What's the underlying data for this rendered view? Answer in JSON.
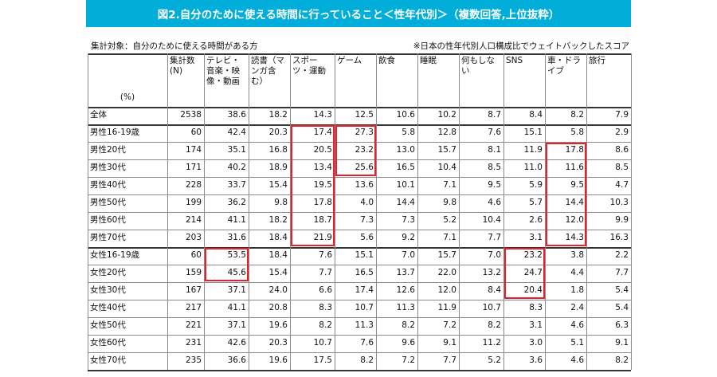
{
  "title": "図2.自分のために使える時間に行っていること＜性年代別＞（複数回答,上位抜粋）",
  "note_left": "集計対象：自分のために使える時間がある方",
  "note_right": "※日本の性年代別人口構成比でウェイトバックしたスコア",
  "chart_data": {
    "type": "table",
    "unit_label": "(%)",
    "columns": [
      "集計数(N)",
      "テレビ・音楽・映像・動画",
      "読書（マンガ含む）",
      "スポーツ・運動",
      "ゲーム",
      "飲食",
      "睡眠",
      "何もしない",
      "SNS",
      "車・ドライブ",
      "旅行"
    ],
    "rows": [
      {
        "label": "全体",
        "values": [
          2538,
          38.6,
          18.2,
          14.3,
          12.5,
          10.6,
          10.2,
          8.7,
          8.4,
          8.2,
          7.9
        ]
      },
      {
        "label": "男性16-19歳",
        "values": [
          60,
          42.4,
          20.3,
          17.4,
          27.3,
          5.8,
          12.8,
          7.6,
          15.1,
          5.8,
          2.9
        ]
      },
      {
        "label": "男性20代",
        "values": [
          174,
          35.1,
          16.8,
          20.5,
          23.2,
          13.0,
          15.7,
          8.1,
          11.9,
          17.8,
          8.6
        ]
      },
      {
        "label": "男性30代",
        "values": [
          171,
          40.2,
          18.9,
          13.4,
          25.6,
          16.5,
          10.4,
          8.5,
          11.0,
          11.6,
          8.5
        ]
      },
      {
        "label": "男性40代",
        "values": [
          228,
          33.7,
          15.4,
          19.5,
          13.6,
          10.1,
          7.1,
          9.5,
          5.9,
          9.5,
          4.7
        ]
      },
      {
        "label": "男性50代",
        "values": [
          199,
          36.2,
          9.8,
          17.8,
          4.0,
          14.4,
          9.8,
          4.6,
          5.7,
          14.4,
          10.3
        ]
      },
      {
        "label": "男性60代",
        "values": [
          214,
          41.1,
          18.2,
          18.7,
          7.3,
          7.3,
          5.2,
          10.4,
          2.6,
          12.0,
          9.9
        ]
      },
      {
        "label": "男性70代",
        "values": [
          203,
          31.6,
          18.4,
          21.9,
          5.6,
          9.2,
          7.1,
          7.7,
          3.1,
          14.3,
          16.3
        ]
      },
      {
        "label": "女性16-19歳",
        "values": [
          60,
          53.5,
          18.4,
          7.6,
          15.1,
          7.0,
          15.7,
          7.0,
          23.2,
          3.8,
          2.2
        ]
      },
      {
        "label": "女性20代",
        "values": [
          159,
          45.6,
          15.4,
          7.7,
          16.5,
          13.7,
          22.0,
          13.2,
          24.7,
          4.4,
          7.7
        ]
      },
      {
        "label": "女性30代",
        "values": [
          167,
          37.1,
          24.0,
          6.6,
          17.4,
          12.6,
          12.0,
          8.4,
          20.4,
          1.8,
          5.4
        ]
      },
      {
        "label": "女性40代",
        "values": [
          217,
          41.1,
          20.8,
          8.3,
          10.7,
          11.3,
          11.9,
          10.7,
          8.3,
          2.4,
          5.4
        ]
      },
      {
        "label": "女性50代",
        "values": [
          221,
          37.1,
          19.6,
          8.2,
          11.3,
          8.2,
          7.2,
          8.2,
          3.1,
          4.6,
          6.3
        ]
      },
      {
        "label": "女性60代",
        "values": [
          231,
          42.6,
          20.3,
          10.7,
          7.6,
          9.6,
          9.1,
          11.2,
          3.0,
          5.1,
          9.1
        ]
      },
      {
        "label": "女性70代",
        "values": [
          235,
          36.6,
          19.6,
          17.5,
          8.2,
          7.2,
          7.7,
          5.2,
          3.6,
          4.6,
          8.2
        ]
      }
    ],
    "highlights": [
      {
        "column": "スポーツ・運動",
        "rows": [
          "男性16-19歳",
          "男性70代"
        ]
      },
      {
        "column": "ゲーム",
        "rows": [
          "男性16-19歳",
          "男性30代"
        ]
      },
      {
        "column": "車・ドライブ",
        "rows": [
          "男性20代",
          "男性70代"
        ]
      },
      {
        "column": "テレビ・音楽・映像・動画",
        "rows": [
          "女性16-19歳",
          "女性20代"
        ]
      },
      {
        "column": "SNS",
        "rows": [
          "女性16-19歳",
          "女性30代"
        ]
      }
    ],
    "highlight_color": "#e8202a",
    "header_color": "#00aed9"
  }
}
